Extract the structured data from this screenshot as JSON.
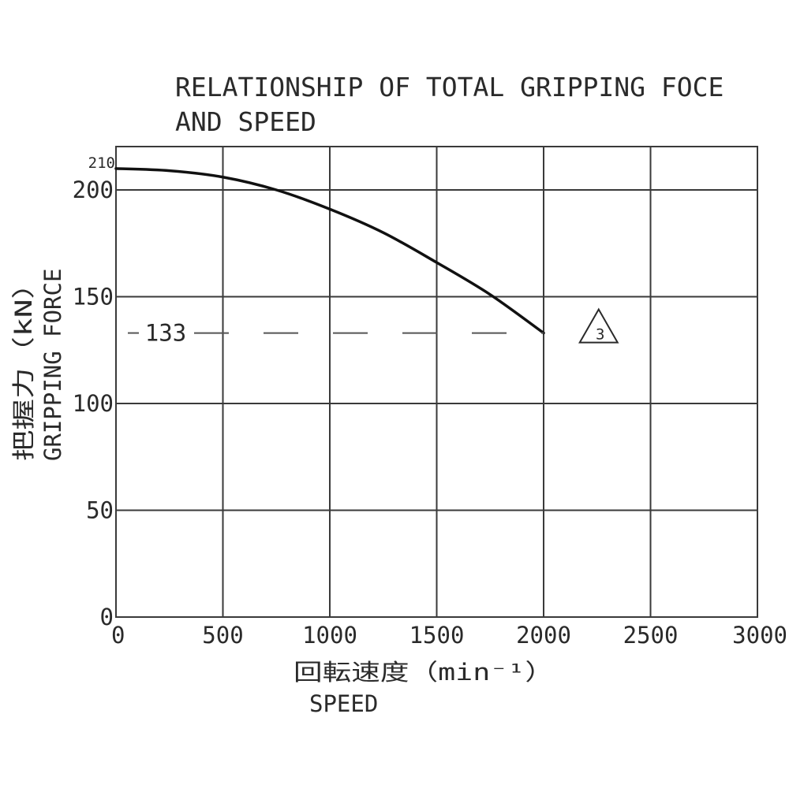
{
  "chart_data": {
    "type": "line",
    "title_lines": [
      "RELATIONSHIP OF TOTAL GRIPPING FOCE",
      "AND SPEED"
    ],
    "xlabel_lines": [
      "回転速度（min⁻¹）",
      "SPEED"
    ],
    "ylabel_lines": [
      "把握力（kN）",
      "GRIPPING FORCE"
    ],
    "xlim": [
      0,
      3000
    ],
    "ylim": [
      0,
      220
    ],
    "x_ticks": [
      0,
      500,
      1000,
      1500,
      2000,
      2500,
      3000
    ],
    "x_tick_labels": [
      "0",
      "500",
      "1000",
      "1500",
      "2000",
      "2500",
      "3000"
    ],
    "y_ticks": [
      0,
      50,
      100,
      150,
      200
    ],
    "y_tick_labels": [
      "0",
      "50",
      "100",
      "150",
      "200"
    ],
    "grid": true,
    "series": [
      {
        "x": [
          0,
          250,
          500,
          750,
          1000,
          1250,
          1500,
          1750,
          2000
        ],
        "y": [
          210,
          209,
          206,
          200,
          191,
          180,
          166,
          151,
          133
        ],
        "style": "solid",
        "color": "#111111"
      }
    ],
    "annotations": [
      {
        "text": "210",
        "y": 210
      },
      {
        "text": "133",
        "y": 133,
        "style": "dashed",
        "x_end": 2000
      },
      {
        "text": "3",
        "shape": "triangle",
        "x": 2250,
        "y": 133
      }
    ]
  }
}
